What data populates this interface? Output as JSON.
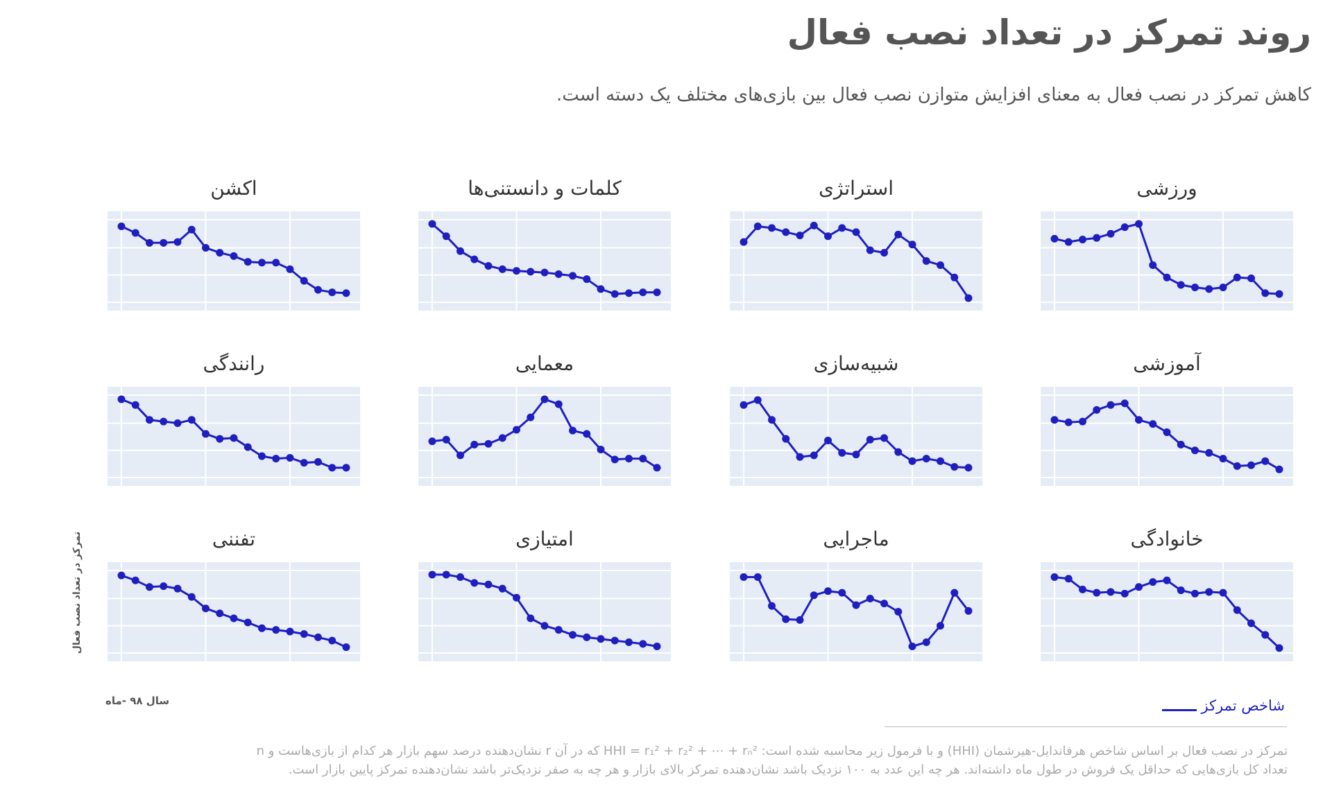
{
  "header": {
    "title": "روند تمرکز در تعداد نصب فعال",
    "subtitle": "کاهش تمرکز در نصب فعال به معنای افزایش متوازن نصب فعال بین بازی‌های مختلف یک دسته است."
  },
  "axes": {
    "ylabel": "تمرکز در تعداد نصب فعال",
    "xlabel": "سال ۹۸ -ماه"
  },
  "legend": {
    "label": "شاخص تمرکز",
    "color": "#1f1fbf"
  },
  "footnote": {
    "line1": "تمرکز در نصب فعال بر اساس شاخص هرفاندایل-هیرشمان (HHI) و با فرمول زیر محاسبه شده است:  HHI = r₁² + r₂² + ⋯ + rₙ²  که در آن r نشان‌دهنده درصد سهم بازار هر کدام از بازی‌هاست و n",
    "line2": "تعداد کل بازی‌هایی که حداقل یک فروش در طول ماه داشته‌اند. هر چه این عدد به ۱۰۰ نزدیک باشد نشان‌دهنده تمرکز بالای بازار و هر چه به صفر نزدیک‌تر باشد نشان‌دهنده تمرکز پایین بازار است."
  },
  "chart_data": [
    {
      "type": "line",
      "title": "ورزشی",
      "values": [
        0.77,
        0.73,
        0.76,
        0.78,
        0.83,
        0.91,
        0.95,
        0.45,
        0.3,
        0.21,
        0.18,
        0.16,
        0.18,
        0.3,
        0.29,
        0.11,
        0.1
      ]
    },
    {
      "type": "line",
      "title": "استراتژی",
      "values": [
        0.73,
        0.92,
        0.9,
        0.85,
        0.81,
        0.93,
        0.8,
        0.9,
        0.85,
        0.63,
        0.6,
        0.82,
        0.7,
        0.5,
        0.45,
        0.3,
        0.05
      ]
    },
    {
      "type": "line",
      "title": "کلمات و دانستنی‌ها",
      "values": [
        0.95,
        0.8,
        0.62,
        0.52,
        0.44,
        0.4,
        0.38,
        0.37,
        0.36,
        0.34,
        0.32,
        0.28,
        0.16,
        0.1,
        0.11,
        0.12,
        0.12
      ]
    },
    {
      "type": "line",
      "title": "اکشن",
      "values": [
        0.92,
        0.84,
        0.72,
        0.72,
        0.73,
        0.88,
        0.66,
        0.6,
        0.56,
        0.49,
        0.48,
        0.48,
        0.4,
        0.26,
        0.15,
        0.12,
        0.11
      ]
    },
    {
      "type": "line",
      "title": "آموزشی",
      "values": [
        0.7,
        0.67,
        0.68,
        0.82,
        0.88,
        0.9,
        0.7,
        0.65,
        0.55,
        0.4,
        0.33,
        0.3,
        0.23,
        0.14,
        0.15,
        0.2,
        0.1
      ]
    },
    {
      "type": "line",
      "title": "شبیه‌سازی",
      "values": [
        0.88,
        0.94,
        0.7,
        0.47,
        0.25,
        0.27,
        0.45,
        0.3,
        0.28,
        0.46,
        0.48,
        0.31,
        0.2,
        0.23,
        0.2,
        0.13,
        0.12
      ]
    },
    {
      "type": "line",
      "title": "معمایی",
      "values": [
        0.44,
        0.46,
        0.27,
        0.4,
        0.41,
        0.48,
        0.58,
        0.73,
        0.95,
        0.89,
        0.57,
        0.53,
        0.34,
        0.22,
        0.23,
        0.23,
        0.12
      ]
    },
    {
      "type": "line",
      "title": "رانندگی",
      "values": [
        0.95,
        0.88,
        0.7,
        0.68,
        0.66,
        0.7,
        0.53,
        0.47,
        0.48,
        0.37,
        0.26,
        0.23,
        0.24,
        0.18,
        0.19,
        0.12,
        0.12
      ]
    },
    {
      "type": "line",
      "title": "خانوادگی",
      "values": [
        0.92,
        0.9,
        0.77,
        0.73,
        0.74,
        0.72,
        0.8,
        0.86,
        0.88,
        0.76,
        0.72,
        0.74,
        0.73,
        0.52,
        0.36,
        0.22,
        0.06
      ]
    },
    {
      "type": "line",
      "title": "ماجرایی",
      "values": [
        0.92,
        0.92,
        0.57,
        0.41,
        0.4,
        0.7,
        0.75,
        0.73,
        0.58,
        0.66,
        0.6,
        0.5,
        0.08,
        0.13,
        0.33,
        0.73,
        0.51
      ]
    },
    {
      "type": "line",
      "title": "امتیازی",
      "values": [
        0.95,
        0.95,
        0.92,
        0.85,
        0.83,
        0.78,
        0.67,
        0.42,
        0.33,
        0.28,
        0.22,
        0.19,
        0.17,
        0.15,
        0.13,
        0.11,
        0.08
      ]
    },
    {
      "type": "line",
      "title": "تفننی",
      "values": [
        0.94,
        0.88,
        0.8,
        0.81,
        0.78,
        0.68,
        0.54,
        0.48,
        0.42,
        0.37,
        0.3,
        0.28,
        0.26,
        0.23,
        0.19,
        0.15,
        0.07
      ]
    }
  ]
}
